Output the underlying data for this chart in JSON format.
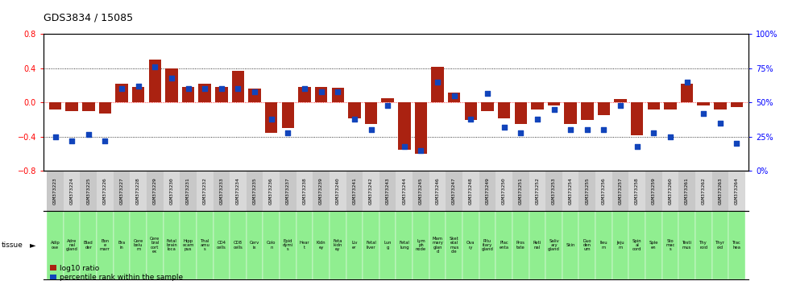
{
  "title": "GDS3834 / 15085",
  "gsm_labels": [
    "GSM373223",
    "GSM373224",
    "GSM373225",
    "GSM373226",
    "GSM373227",
    "GSM373228",
    "GSM373229",
    "GSM373230",
    "GSM373231",
    "GSM373232",
    "GSM373233",
    "GSM373234",
    "GSM373235",
    "GSM373236",
    "GSM373237",
    "GSM373238",
    "GSM373239",
    "GSM373240",
    "GSM373241",
    "GSM373242",
    "GSM373243",
    "GSM373244",
    "GSM373245",
    "GSM373246",
    "GSM373247",
    "GSM373248",
    "GSM373249",
    "GSM373250",
    "GSM373251",
    "GSM373252",
    "GSM373253",
    "GSM373254",
    "GSM373255",
    "GSM373256",
    "GSM373257",
    "GSM373258",
    "GSM373259",
    "GSM373260",
    "GSM373261",
    "GSM373262",
    "GSM373263",
    "GSM373264"
  ],
  "tissue_labels": [
    "Adip\nose",
    "Adre\nnal\ngland",
    "Blad\nder",
    "Bon\ne\nmarr",
    "Bra\nin",
    "Cere\nbelu\nm",
    "Cere\nbral\ncort\nex",
    "Fetal\nbrain\nloca",
    "Hipp\nocam\npus",
    "Thal\namu\ns",
    "CD4\ncells",
    "CD8\ncells",
    "Cerv\nix",
    "Colo\nn",
    "Epid\ndymi\ns",
    "Hear\nt",
    "Kidn\ney",
    "Feta\nkidn\ney",
    "Liv\ner",
    "Fetal\nliver",
    "Lun\ng",
    "Fetal\nlung",
    "Lym\nph\nnode",
    "Mam\nmary\nglan\nd",
    "Sket\netal\nmus\ncle",
    "Ova\nry",
    "Pitu\nitary\ngland",
    "Plac\nenta",
    "Pros\ntate",
    "Reti\nnal",
    "Saliv\nary\ngland",
    "Skin",
    "Duo\nden\num",
    "Ileu\nm",
    "Jeju\nm",
    "Spin\nal\ncord",
    "Sple\nen",
    "Sto\nmac\ns",
    "Testi\nmus",
    "Thy\nroid",
    "Thyr\noid",
    "Trac\nhea"
  ],
  "log10_ratio": [
    -0.08,
    -0.1,
    -0.1,
    -0.13,
    0.22,
    0.18,
    0.5,
    0.4,
    0.18,
    0.22,
    0.18,
    0.37,
    0.16,
    -0.35,
    -0.3,
    0.18,
    0.18,
    0.17,
    -0.18,
    -0.25,
    0.05,
    -0.55,
    -0.6,
    0.42,
    0.12,
    -0.2,
    -0.1,
    -0.18,
    -0.25,
    -0.08,
    -0.03,
    -0.25,
    -0.2,
    -0.15,
    0.04,
    -0.38,
    -0.08,
    -0.08,
    0.22,
    -0.03,
    -0.08,
    -0.05
  ],
  "percentile_rank": [
    25,
    22,
    27,
    22,
    60,
    62,
    76,
    68,
    60,
    60,
    60,
    60,
    58,
    38,
    28,
    60,
    58,
    58,
    38,
    30,
    48,
    18,
    15,
    65,
    55,
    38,
    57,
    32,
    28,
    38,
    45,
    30,
    30,
    30,
    48,
    18,
    28,
    25,
    65,
    42,
    35,
    20
  ],
  "bar_color": "#aa2211",
  "dot_color": "#1144bb",
  "bg_color": "#ffffff",
  "plot_bg": "#ffffff",
  "gsm_bg_even": "#c8c8c8",
  "gsm_bg_odd": "#d8d8d8",
  "tissue_bg": "#90ee90",
  "ylim_left": [
    -0.8,
    0.8
  ],
  "ylim_right": [
    0,
    100
  ],
  "yticks_left": [
    -0.8,
    -0.4,
    0.0,
    0.4,
    0.8
  ],
  "yticks_right": [
    0,
    25,
    50,
    75,
    100
  ],
  "legend_items": [
    "log10 ratio",
    "percentile rank within the sample"
  ]
}
